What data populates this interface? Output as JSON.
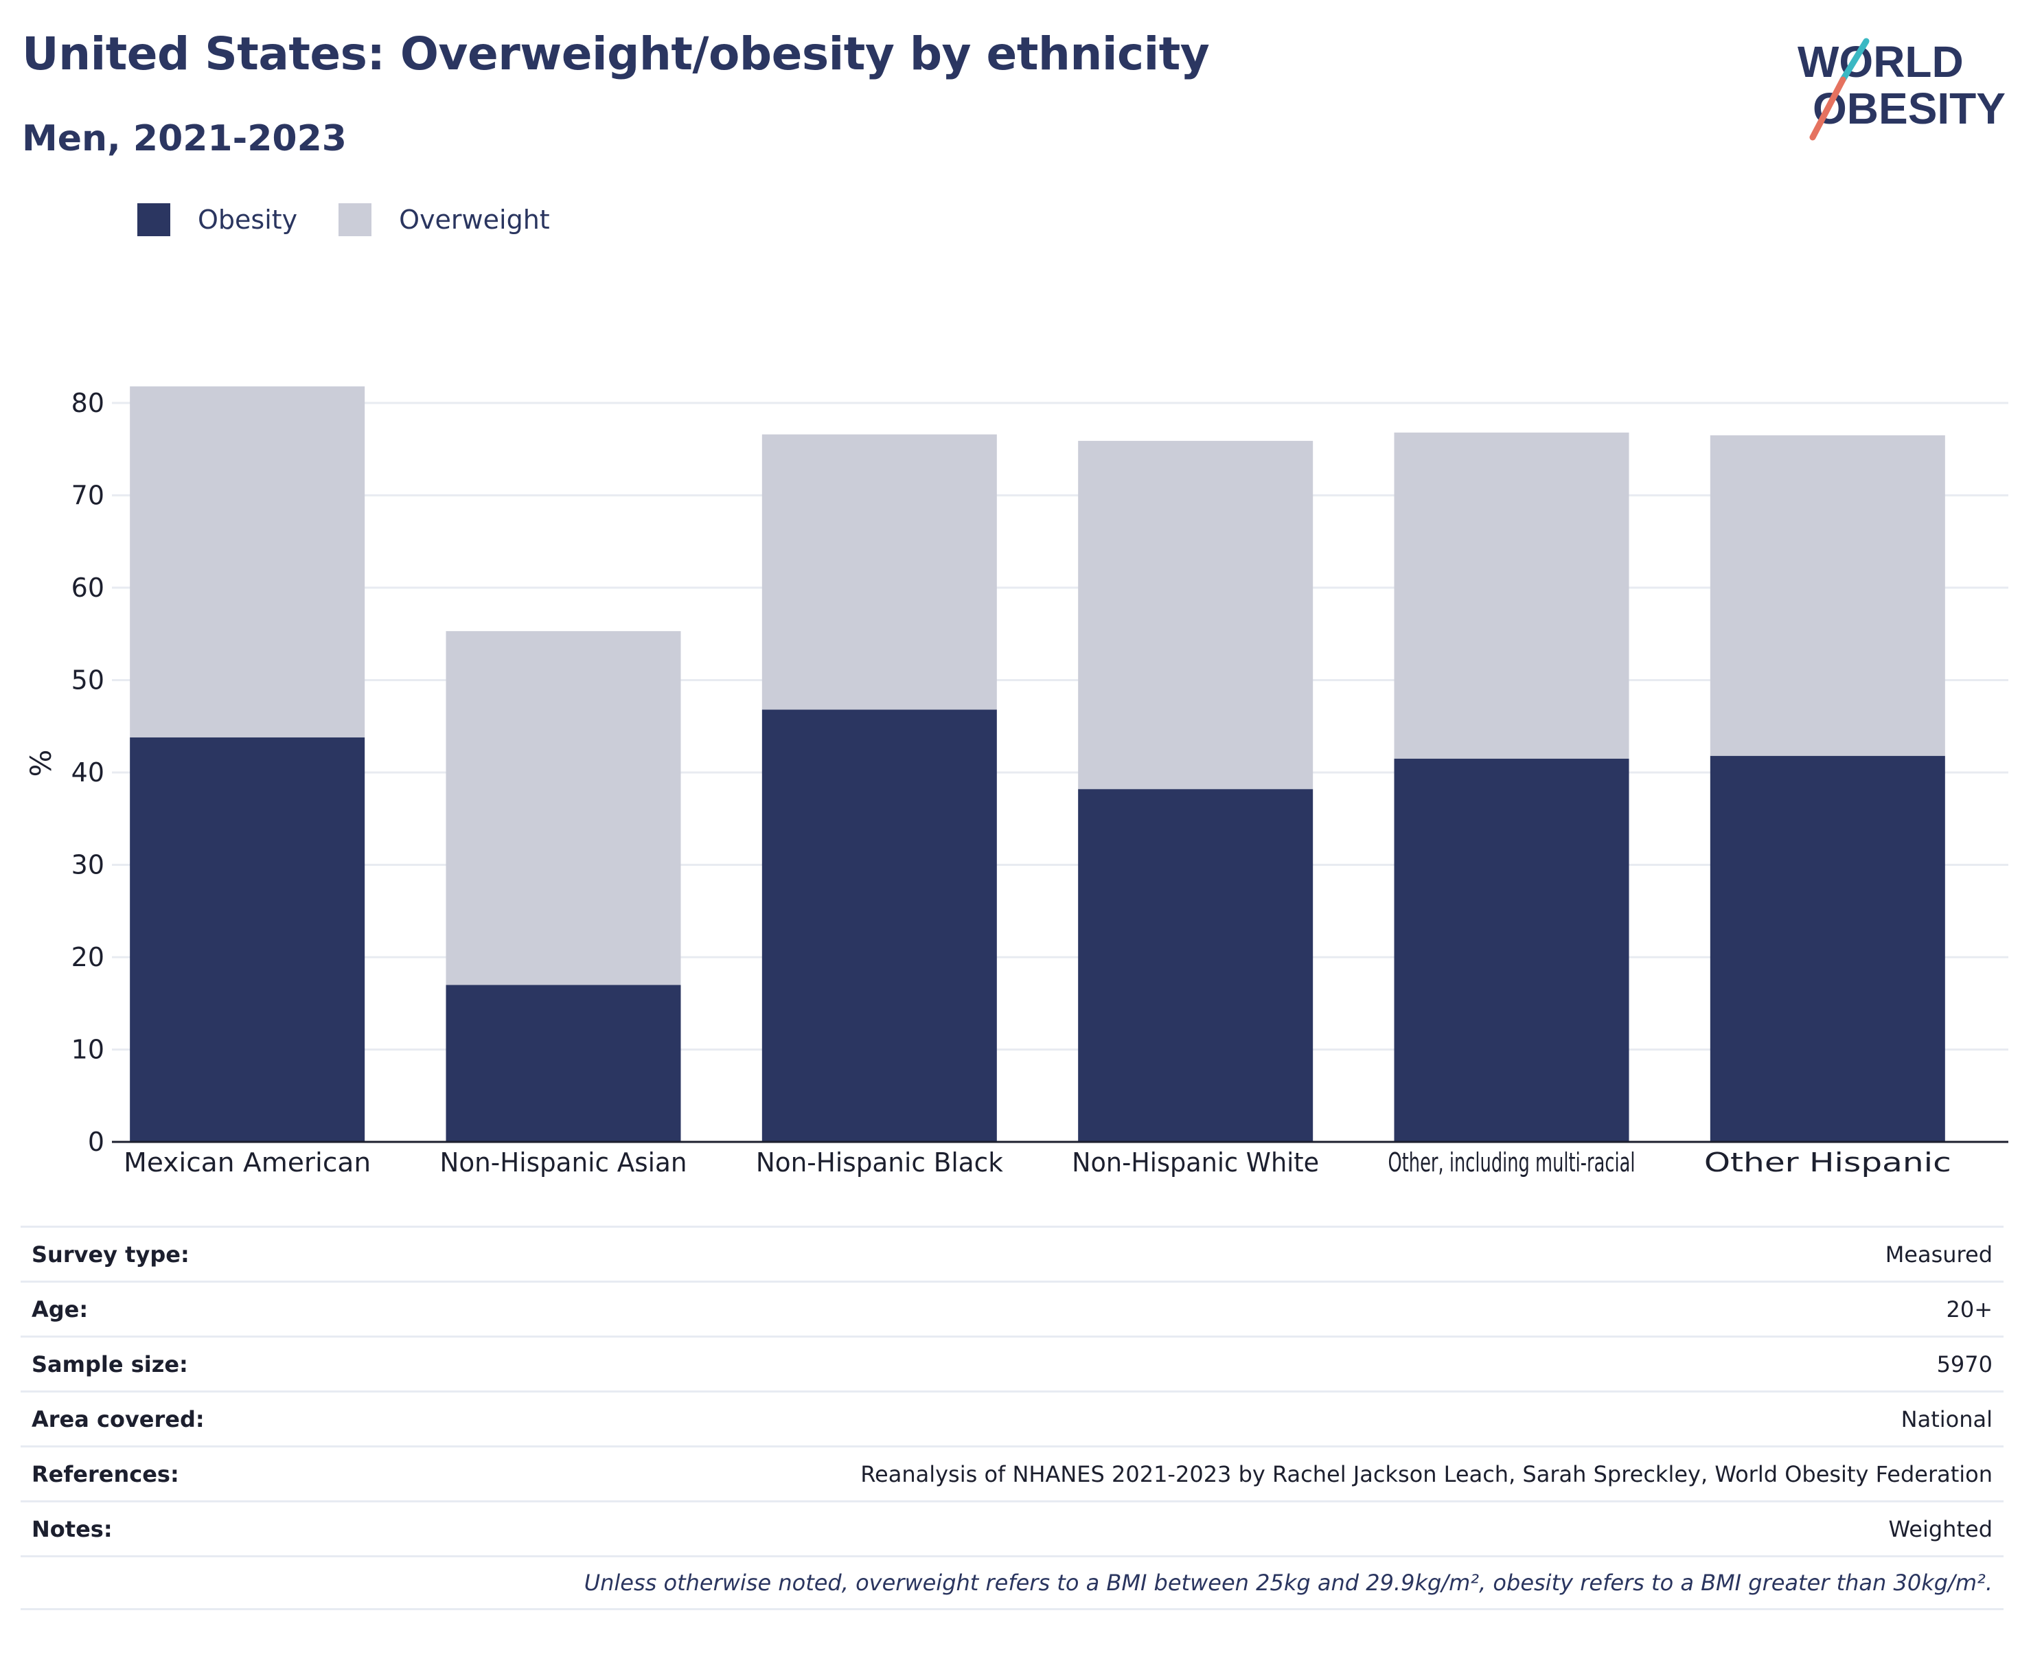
{
  "header": {
    "title": "United States: Overweight/obesity by ethnicity",
    "subtitle": "Men, 2021-2023"
  },
  "logo": {
    "line1": "WORLD",
    "line2": "OBESITY"
  },
  "legend": {
    "obesity": "Obesity",
    "overweight": "Overweight"
  },
  "colors": {
    "obesity": "#2b3661",
    "overweight": "#cbcdd8",
    "logo_teal": "#3bb8c3",
    "logo_coral": "#e5725f"
  },
  "chart_data": {
    "type": "bar",
    "stacked": true,
    "categories": [
      "Mexican American",
      "Non-Hispanic Asian",
      "Non-Hispanic Black",
      "Non-Hispanic White",
      "Other, including multi-racial",
      "Other Hispanic"
    ],
    "series": [
      {
        "name": "Obesity",
        "values": [
          43.8,
          17.0,
          46.8,
          38.2,
          41.5,
          41.8
        ]
      },
      {
        "name": "Overweight",
        "values": [
          38.0,
          38.3,
          29.8,
          37.7,
          35.3,
          34.7
        ]
      }
    ],
    "ylabel": "%",
    "ylim": [
      0,
      82
    ],
    "yticks": [
      0,
      10,
      20,
      30,
      40,
      50,
      60,
      70,
      80
    ],
    "grid": true,
    "legend_position": "top-left"
  },
  "meta": {
    "rows": [
      {
        "key": "Survey type:",
        "value": "Measured"
      },
      {
        "key": "Age:",
        "value": "20+"
      },
      {
        "key": "Sample size:",
        "value": "5970"
      },
      {
        "key": "Area covered:",
        "value": "National"
      },
      {
        "key": "References:",
        "value": "Reanalysis of NHANES 2021-2023 by Rachel Jackson Leach, Sarah Spreckley, World Obesity Federation"
      },
      {
        "key": "Notes:",
        "value": "Weighted"
      }
    ],
    "note": "Unless otherwise noted, overweight refers to a BMI between 25kg and 29.9kg/m², obesity refers to a BMI greater than 30kg/m²."
  }
}
